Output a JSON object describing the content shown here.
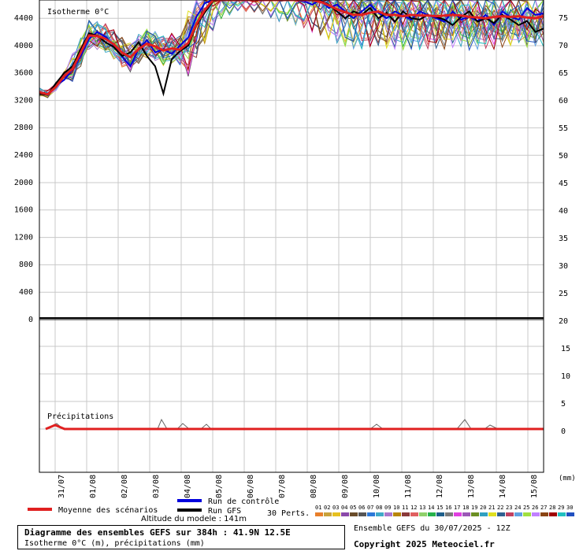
{
  "chart_data": {
    "type": "line",
    "top_panel": {
      "label": "Isotherme 0°C",
      "left_axis_ticks": [
        "4400",
        "4000",
        "3600",
        "3200",
        "2800",
        "2400",
        "2000",
        "1600",
        "1200",
        "800",
        "400",
        "0"
      ],
      "right_axis_ticks": [
        "75",
        "70",
        "65",
        "60",
        "55",
        "50",
        "45",
        "40",
        "35",
        "30",
        "25",
        "20"
      ],
      "ylim": [
        0,
        4600
      ]
    },
    "bottom_panel": {
      "label": "Précipitations",
      "right_axis_ticks": [
        "15",
        "10",
        "5",
        "0"
      ],
      "unit_label": "(mm)"
    },
    "x_tick_labels": [
      "31/07",
      "01/08",
      "02/08",
      "03/08",
      "04/08",
      "05/08",
      "06/08",
      "07/08",
      "08/08",
      "09/08",
      "10/08",
      "11/08",
      "12/08",
      "13/08",
      "14/08",
      "15/08"
    ],
    "mean_isotherm": [
      3320,
      3290,
      3400,
      3560,
      3660,
      3900,
      4150,
      4140,
      4100,
      4020,
      3900,
      3830,
      3950,
      4030,
      3990,
      3930,
      3960,
      3940,
      4040,
      4320,
      4520,
      4720,
      4880,
      4950,
      5000,
      5000,
      4980,
      4960,
      4900,
      4850,
      4850,
      4800,
      4750,
      4700,
      4640,
      4590,
      4530,
      4490,
      4450,
      4450,
      4480,
      4500,
      4450,
      4450,
      4430,
      4450,
      4440,
      4440,
      4430,
      4440,
      4450,
      4440,
      4420,
      4410,
      4400,
      4420,
      4430,
      4420,
      4430,
      4410,
      4400,
      4430
    ],
    "control_run": [
      3310,
      3300,
      3420,
      3500,
      3650,
      3850,
      4100,
      4200,
      4130,
      4000,
      3840,
      3700,
      3950,
      4080,
      3900,
      3950,
      3880,
      4000,
      4120,
      4420,
      4620,
      4900,
      5050,
      5100,
      5080,
      4980,
      4900,
      4850,
      4950,
      4820,
      4750,
      4700,
      4650,
      4600,
      4700,
      4550,
      4600,
      4500,
      4400,
      4500,
      4600,
      4480,
      4400,
      4500,
      4440,
      4380,
      4500,
      4450,
      4400,
      4350,
      4500,
      4380,
      4420,
      4360,
      4450,
      4300,
      4500,
      4420,
      4380,
      4550,
      4450,
      4470
    ],
    "gfs_run": [
      3300,
      3280,
      3450,
      3600,
      3700,
      3950,
      4180,
      4150,
      4050,
      3980,
      3850,
      3900,
      4050,
      3850,
      3700,
      3300,
      3800,
      3920,
      4000,
      4300,
      4480,
      4650,
      4800,
      4900,
      5050,
      5020,
      4850,
      4800,
      4750,
      4900,
      4850,
      4750,
      4700,
      4800,
      4650,
      4600,
      4500,
      4400,
      4500,
      4450,
      4550,
      4400,
      4480,
      4350,
      4500,
      4400,
      4380,
      4450,
      4420,
      4380,
      4300,
      4420,
      4500,
      4350,
      4400,
      4330,
      4450,
      4380,
      4300,
      4360,
      4200,
      4250
    ],
    "legend": {
      "mean": "Moyenne des scénarios",
      "control": "Run de contrôle",
      "gfs": "Run GFS",
      "perts": "30 Perts.",
      "pert_numbers": [
        "01",
        "02",
        "03",
        "04",
        "05",
        "06",
        "07",
        "08",
        "09",
        "10",
        "11",
        "12",
        "13",
        "14",
        "15",
        "16",
        "17",
        "18",
        "19",
        "20",
        "21",
        "22",
        "23",
        "24",
        "25",
        "26",
        "27",
        "28",
        "29",
        "30"
      ],
      "pert_colors": [
        "#e87f2b",
        "#c9a23b",
        "#e6c020",
        "#8a49a9",
        "#6a4c2a",
        "#555555",
        "#2b78d8",
        "#3fa9c8",
        "#aa77cc",
        "#b8860b",
        "#8b3a3a",
        "#e06060",
        "#8fd06a",
        "#27b24b",
        "#1f5f8b",
        "#7a7a7a",
        "#e040e0",
        "#9b59b6",
        "#6b8e23",
        "#30a0c0",
        "#e0e020",
        "#306090",
        "#c04060",
        "#60a0e0",
        "#a0e040",
        "#c080ff",
        "#8b4513",
        "#a00000",
        "#20c0c0",
        "#2050c0"
      ]
    },
    "colors": {
      "mean": "#e02020",
      "control": "#0000dd",
      "gfs": "#000000",
      "grid": "#c8c8c8"
    }
  },
  "footer": {
    "title": "Diagramme des ensembles GEFS sur 384h : 41.9N 12.5E",
    "subtitle": "Isotherme 0°C (m), précipitations (mm)",
    "altitude": "Altitude du modele : 141m",
    "ensemble": "Ensemble GEFS du 30/07/2025 - 12Z",
    "copyright": "Copyright 2025 Meteociel.fr"
  }
}
